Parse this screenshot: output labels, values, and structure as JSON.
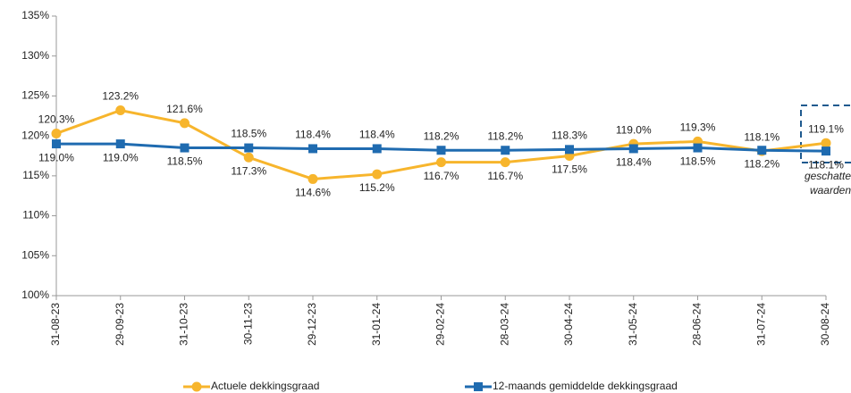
{
  "chart_data": {
    "type": "line",
    "categories": [
      "31-08-23",
      "29-09-23",
      "31-10-23",
      "30-11-23",
      "29-12-23",
      "31-01-24",
      "29-02-24",
      "28-03-24",
      "30-04-24",
      "31-05-24",
      "28-06-24",
      "31-07-24",
      "30-08-24"
    ],
    "series": [
      {
        "name": "Actuele dekkingsgraad",
        "color": "#f7b52c",
        "marker": "circle",
        "values": [
          120.3,
          123.2,
          121.6,
          117.3,
          114.6,
          115.2,
          116.7,
          116.7,
          117.5,
          119.0,
          119.3,
          118.1,
          119.1
        ],
        "value_labels": [
          "120.3%",
          "123.2%",
          "121.6%",
          "117.3%",
          "114.6%",
          "115.2%",
          "116.7%",
          "116.7%",
          "117.5%",
          "119.0%",
          "119.3%",
          "118.1%",
          "119.1%"
        ]
      },
      {
        "name": "12-maands gemiddelde dekkingsgraad",
        "color": "#1f6bb0",
        "marker": "square",
        "values": [
          119.0,
          119.0,
          118.5,
          118.5,
          118.4,
          118.4,
          118.2,
          118.2,
          118.3,
          118.4,
          118.5,
          118.2,
          118.1
        ],
        "value_labels": [
          "119.0%",
          "119.0%",
          "118.5%",
          "118.5%",
          "118.4%",
          "118.4%",
          "118.2%",
          "118.2%",
          "118.3%",
          "118.4%",
          "118.5%",
          "118.2%",
          "118.1%"
        ]
      }
    ],
    "ylim": [
      100,
      135
    ],
    "yticks": [
      {
        "value": 100,
        "label": "100%"
      },
      {
        "value": 105,
        "label": "105%"
      },
      {
        "value": 110,
        "label": "110%"
      },
      {
        "value": 115,
        "label": "115%"
      },
      {
        "value": 120,
        "label": "120%"
      },
      {
        "value": 125,
        "label": "125%"
      },
      {
        "value": 130,
        "label": "130%"
      },
      {
        "value": 135,
        "label": "135%"
      }
    ],
    "grid": false,
    "legend": "bottom",
    "annotation": [
      "geschatte",
      "waarden"
    ]
  }
}
